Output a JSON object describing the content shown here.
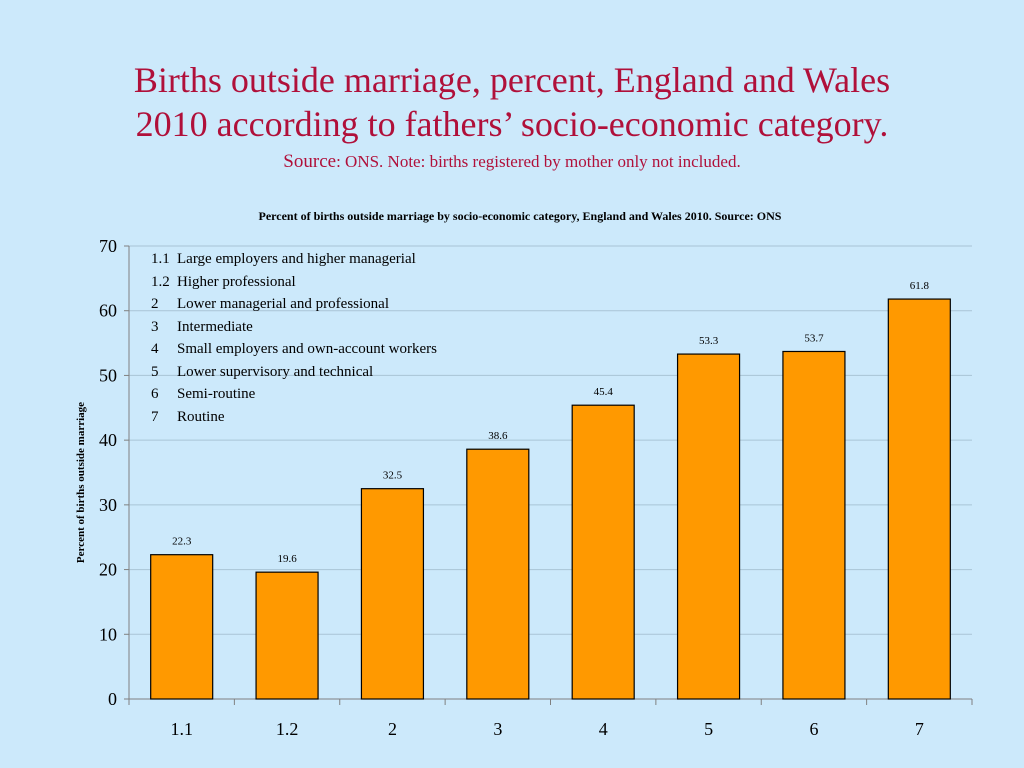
{
  "slide": {
    "title_line1": "Births outside marriage, percent, England and Wales",
    "title_line2": "2010 according to fathers’ socio-economic category.",
    "source_label": "Source",
    "source_text": ": ONS. Note: births registered by mother only not included."
  },
  "legend": {
    "items": [
      {
        "code": "1.1",
        "text": "Large employers and higher managerial"
      },
      {
        "code": "1.2",
        "text": "Higher professional"
      },
      {
        "code": "2",
        "text": "Lower managerial and professional"
      },
      {
        "code": "3",
        "text": "Intermediate"
      },
      {
        "code": "4",
        "text": "Small employers and own-account workers"
      },
      {
        "code": "5",
        "text": "Lower supervisory and technical"
      },
      {
        "code": "6",
        "text": "Semi-routine"
      },
      {
        "code": "7",
        "text": "Routine"
      }
    ]
  },
  "chart_data": {
    "type": "bar",
    "title": "Percent of births outside marriage by socio-economic category, England and Wales 2010. Source: ONS",
    "xlabel": "",
    "ylabel": "Percent of births outside marriage",
    "categories": [
      "1.1",
      "1.2",
      "2",
      "3",
      "4",
      "5",
      "6",
      "7"
    ],
    "values": [
      22.3,
      19.6,
      32.5,
      38.6,
      45.4,
      53.3,
      53.7,
      61.8
    ],
    "ylim": [
      0,
      70
    ],
    "yticks": [
      0,
      10,
      20,
      30,
      40,
      50,
      60,
      70
    ],
    "grid": true,
    "data_labels": true,
    "colors": {
      "bar": "#ff9900",
      "bar_stroke": "#000000",
      "grid": "#a9c4d6",
      "axis": "#808080"
    }
  }
}
